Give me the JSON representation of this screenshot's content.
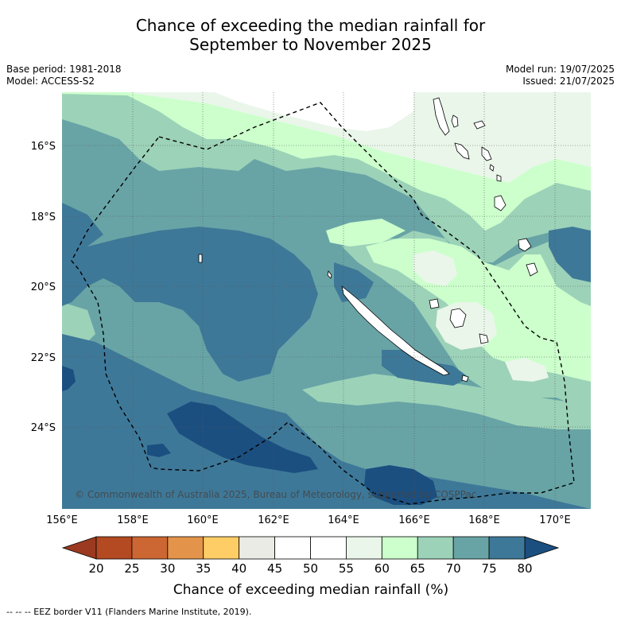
{
  "title_line1": "Chance of exceeding the median rainfall for",
  "title_line2": "September to November 2025",
  "meta_left": {
    "base_period": "Base period: 1981-2018",
    "model": "Model: ACCESS-S2"
  },
  "meta_right": {
    "model_run": "Model run: 19/07/2025",
    "issued": "Issued: 21/07/2025"
  },
  "copyright": "© Commonwealth of Australia 2025, Bureau of Meteorology, supported by COSPPac",
  "lat_labels": [
    "16°S",
    "18°S",
    "20°S",
    "22°S",
    "24°S"
  ],
  "lon_labels": [
    "156°E",
    "158°E",
    "160°E",
    "162°E",
    "164°E",
    "166°E",
    "168°E",
    "170°E"
  ],
  "colorbar": {
    "ticks": [
      "20",
      "25",
      "30",
      "35",
      "40",
      "45",
      "50",
      "55",
      "60",
      "65",
      "70",
      "75",
      "80"
    ],
    "colors": [
      "#b34a22",
      "#cc6633",
      "#e3944a",
      "#fecd66",
      "#ebebe6",
      "#ffffff",
      "#ffffff",
      "#eaf6ea",
      "#ccffcc",
      "#9cd2b8",
      "#68a4a6",
      "#3e7898"
    ],
    "low_extend_color": "#9b3a20",
    "high_extend_color": "#1b4f80",
    "title": "Chance of exceeding median rainfall (%)"
  },
  "footer": "-- -- -- EEZ border V11 (Flanders Marine Institute, 2019)."
}
